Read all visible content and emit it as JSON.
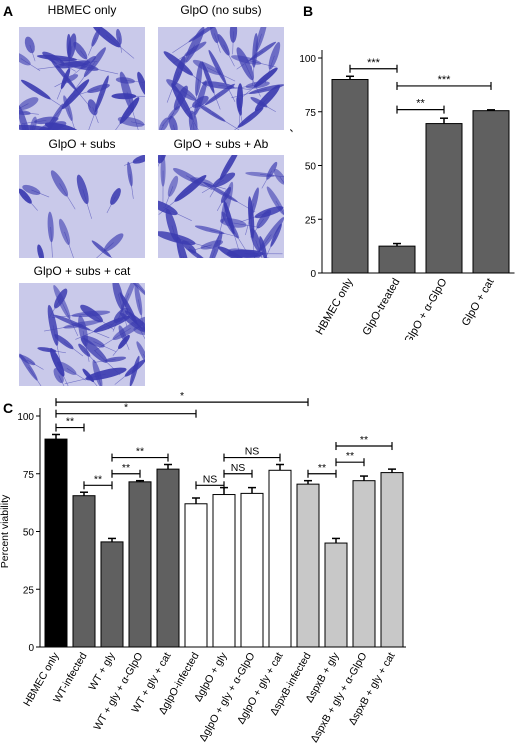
{
  "panels": {
    "a": {
      "letter": "A",
      "images": [
        {
          "label": "HBMEC only",
          "density": "dense"
        },
        {
          "label": "GlpO (no subs)",
          "density": "dense"
        },
        {
          "label": "GlpO + subs",
          "density": "sparse"
        },
        {
          "label": "GlpO + subs + Ab",
          "density": "dense"
        },
        {
          "label": "GlpO + subs + cat",
          "density": "dense"
        }
      ]
    },
    "b": {
      "letter": "B"
    },
    "c": {
      "letter": "C"
    }
  },
  "colors": {
    "dark_gray": "#606060",
    "light_gray": "#c8c8c8",
    "white": "#ffffff",
    "black": "#000000",
    "micro_bg": "#c9c9ea",
    "micro_cell": "#3b3bb0"
  },
  "chart_data": [
    {
      "type": "bar",
      "panel": "B",
      "ylabel": "Percent viability",
      "ylim": [
        0,
        100
      ],
      "yticks": [
        0,
        25,
        50,
        75,
        100
      ],
      "categories": [
        "HBMEC only",
        "GlpO-treated",
        "GlpO + α-GlpO",
        "GlpO + cat"
      ],
      "values": [
        90,
        12.5,
        69.5,
        75.5
      ],
      "errors": [
        1.5,
        1.2,
        2.5,
        0.4
      ],
      "bar_colors": [
        "#606060",
        "#606060",
        "#606060",
        "#606060"
      ],
      "significance": [
        {
          "from": 0,
          "to": 1,
          "label": "***",
          "level": 95
        },
        {
          "from": 1,
          "to": 2,
          "label": "**",
          "level": 76
        },
        {
          "from": 1,
          "to": 3,
          "label": "***",
          "level": 87
        }
      ]
    },
    {
      "type": "bar",
      "panel": "C",
      "ylabel": "Percent viability",
      "ylim": [
        0,
        100
      ],
      "yticks": [
        0,
        25,
        50,
        75,
        100
      ],
      "categories": [
        "HBMEC only",
        "WT-infected",
        "WT + gly",
        "WT + gly + α-GlpO",
        "WT + gly + cat",
        "ΔglpO-infected",
        "ΔglpO + gly",
        "ΔglpO + gly + α-GlpO",
        "ΔglpO + gly + cat",
        "ΔspxB-infected",
        "ΔspxB + gly",
        "ΔspxB + gly + α-GlpO",
        "ΔspxB + gly + cat"
      ],
      "values": [
        90,
        65.5,
        45.5,
        71.5,
        77,
        62,
        66,
        66.5,
        76.5,
        70.5,
        45,
        72,
        75.5
      ],
      "errors": [
        2,
        1.5,
        1.5,
        0.5,
        2,
        2.5,
        3,
        2.5,
        2.5,
        1.5,
        2,
        2,
        1.5
      ],
      "bar_colors": [
        "#000000",
        "#606060",
        "#606060",
        "#606060",
        "#606060",
        "#ffffff",
        "#ffffff",
        "#ffffff",
        "#ffffff",
        "#c8c8c8",
        "#c8c8c8",
        "#c8c8c8",
        "#c8c8c8"
      ],
      "significance": [
        {
          "from": 0,
          "to": 1,
          "label": "**",
          "level": 95
        },
        {
          "from": 1,
          "to": 2,
          "label": "**",
          "level": 70
        },
        {
          "from": 2,
          "to": 3,
          "label": "**",
          "level": 75
        },
        {
          "from": 2,
          "to": 4,
          "label": "**",
          "level": 82
        },
        {
          "from": 5,
          "to": 6,
          "label": "NS",
          "level": 70
        },
        {
          "from": 6,
          "to": 7,
          "label": "NS",
          "level": 75
        },
        {
          "from": 6,
          "to": 8,
          "label": "NS",
          "level": 82
        },
        {
          "from": 9,
          "to": 10,
          "label": "**",
          "level": 75
        },
        {
          "from": 10,
          "to": 11,
          "label": "**",
          "level": 80
        },
        {
          "from": 10,
          "to": 12,
          "label": "**",
          "level": 87
        },
        {
          "from": 0,
          "to": 5,
          "label": "*",
          "level": 101
        },
        {
          "from": 0,
          "to": 9,
          "label": "*",
          "level": 106
        }
      ]
    }
  ]
}
